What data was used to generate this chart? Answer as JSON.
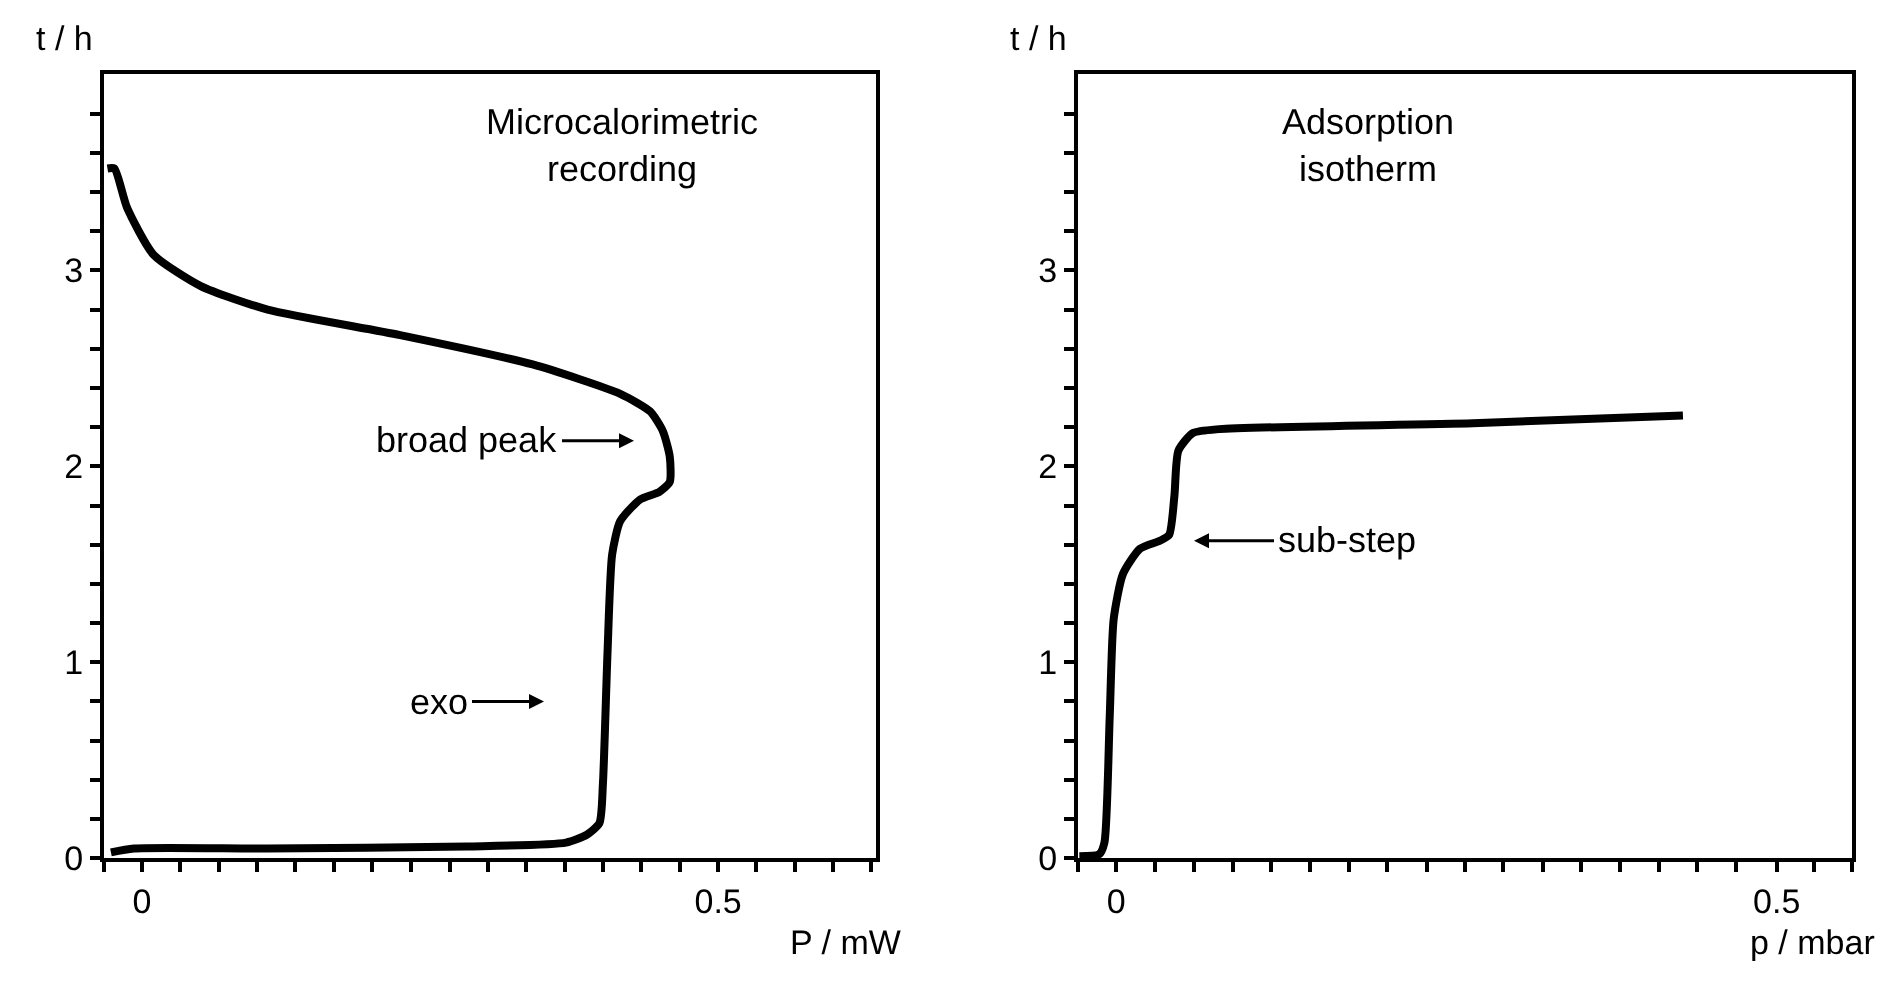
{
  "chart_data": [
    {
      "type": "line",
      "title": "Microcalorimetric\nrecording",
      "xlabel": "P / mW",
      "ylabel": "t / h",
      "xlim": [
        -0.033,
        0.637
      ],
      "ylim": [
        0,
        4
      ],
      "xticks": [
        {
          "value": -0.033,
          "label": null
        },
        0,
        {
          "value": 0.033,
          "label": null
        },
        {
          "value": 0.067,
          "label": null
        },
        {
          "value": 0.1,
          "label": null
        },
        {
          "value": 0.133,
          "label": null
        },
        {
          "value": 0.167,
          "label": null
        },
        {
          "value": 0.2,
          "label": null
        },
        {
          "value": 0.233,
          "label": null
        },
        {
          "value": 0.267,
          "label": null
        },
        {
          "value": 0.3,
          "label": null
        },
        {
          "value": 0.333,
          "label": null
        },
        {
          "value": 0.367,
          "label": null
        },
        {
          "value": 0.4,
          "label": null
        },
        {
          "value": 0.433,
          "label": null
        },
        {
          "value": 0.467,
          "label": null
        },
        0.5,
        {
          "value": 0.533,
          "label": null
        },
        {
          "value": 0.567,
          "label": null
        },
        {
          "value": 0.6,
          "label": null
        },
        {
          "value": 0.633,
          "label": null
        }
      ],
      "yticks": [
        0,
        {
          "value": 0.2,
          "label": null
        },
        {
          "value": 0.4,
          "label": null
        },
        {
          "value": 0.6,
          "label": null
        },
        {
          "value": 0.8,
          "label": null
        },
        1,
        {
          "value": 1.2,
          "label": null
        },
        {
          "value": 1.4,
          "label": null
        },
        {
          "value": 1.6,
          "label": null
        },
        {
          "value": 1.8,
          "label": null
        },
        2,
        {
          "value": 2.2,
          "label": null
        },
        {
          "value": 2.4,
          "label": null
        },
        {
          "value": 2.6,
          "label": null
        },
        {
          "value": 2.8,
          "label": null
        },
        3,
        {
          "value": 3.2,
          "label": null
        },
        {
          "value": 3.4,
          "label": null
        },
        {
          "value": 3.6,
          "label": null
        },
        {
          "value": 3.8,
          "label": null
        }
      ],
      "series": [
        {
          "color": "#000000",
          "x": [
            -0.027,
            -0.007,
            0.109,
            0.282,
            0.368,
            0.386,
            0.397,
            0.4,
            0.404,
            0.408,
            0.415,
            0.432,
            0.449,
            0.458,
            0.458,
            0.452,
            0.441,
            0.415,
            0.339,
            0.224,
            0.109,
            0.051,
            0.01,
            -0.013,
            -0.024,
            -0.03
          ],
          "values": [
            0.03,
            0.05,
            0.05,
            0.06,
            0.08,
            0.12,
            0.18,
            0.38,
            1.05,
            1.55,
            1.72,
            1.83,
            1.87,
            1.92,
            2.05,
            2.18,
            2.28,
            2.37,
            2.52,
            2.67,
            2.8,
            2.92,
            3.08,
            3.32,
            3.52,
            3.52
          ]
        }
      ],
      "annotations": [
        "broad peak",
        "exo"
      ]
    },
    {
      "type": "line",
      "title": "Adsorption\nisotherm",
      "xlabel": "p / mbar",
      "ylabel": "t / h",
      "xlim": [
        -0.029,
        0.557
      ],
      "ylim": [
        0,
        4
      ],
      "xticks": [
        {
          "value": -0.029,
          "label": null
        },
        0,
        {
          "value": 0.029,
          "label": null
        },
        {
          "value": 0.059,
          "label": null
        },
        {
          "value": 0.088,
          "label": null
        },
        {
          "value": 0.117,
          "label": null
        },
        {
          "value": 0.147,
          "label": null
        },
        {
          "value": 0.176,
          "label": null
        },
        {
          "value": 0.205,
          "label": null
        },
        {
          "value": 0.235,
          "label": null
        },
        {
          "value": 0.264,
          "label": null
        },
        {
          "value": 0.293,
          "label": null
        },
        {
          "value": 0.323,
          "label": null
        },
        {
          "value": 0.352,
          "label": null
        },
        {
          "value": 0.381,
          "label": null
        },
        {
          "value": 0.411,
          "label": null
        },
        {
          "value": 0.44,
          "label": null
        },
        {
          "value": 0.469,
          "label": null
        },
        0.5,
        {
          "value": 0.528,
          "label": null
        },
        {
          "value": 0.557,
          "label": null
        }
      ],
      "yticks": [
        0,
        {
          "value": 0.2,
          "label": null
        },
        {
          "value": 0.4,
          "label": null
        },
        {
          "value": 0.6,
          "label": null
        },
        {
          "value": 0.8,
          "label": null
        },
        1,
        {
          "value": 1.2,
          "label": null
        },
        {
          "value": 1.4,
          "label": null
        },
        {
          "value": 1.6,
          "label": null
        },
        {
          "value": 1.8,
          "label": null
        },
        2,
        {
          "value": 2.2,
          "label": null
        },
        {
          "value": 2.4,
          "label": null
        },
        {
          "value": 2.6,
          "label": null
        },
        {
          "value": 2.8,
          "label": null
        },
        3,
        {
          "value": 3.2,
          "label": null
        },
        {
          "value": 3.4,
          "label": null
        },
        {
          "value": 3.6,
          "label": null
        },
        {
          "value": 3.8,
          "label": null
        }
      ],
      "series": [
        {
          "color": "#000000",
          "x": [
            -0.028,
            -0.013,
            -0.009,
            -0.005,
            -0.002,
            0.005,
            0.018,
            0.033,
            0.04,
            0.044,
            0.047,
            0.058,
            0.078,
            0.27,
            0.429
          ],
          "values": [
            0.01,
            0.02,
            0.08,
            0.72,
            1.22,
            1.45,
            1.58,
            1.62,
            1.65,
            1.85,
            2.08,
            2.17,
            2.19,
            2.22,
            2.26
          ]
        }
      ],
      "annotations": [
        "sub-step"
      ]
    }
  ]
}
